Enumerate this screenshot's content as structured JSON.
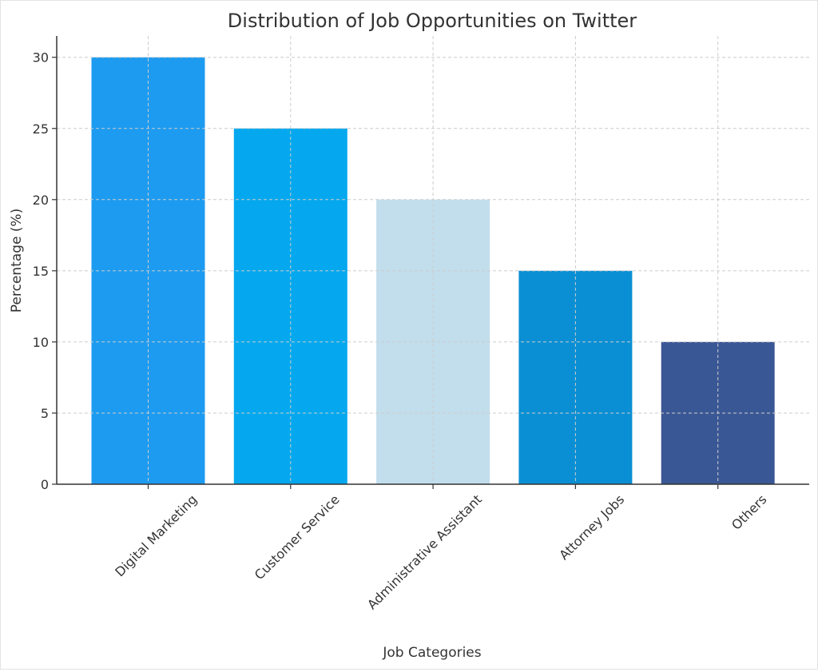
{
  "chart_data": {
    "type": "bar",
    "title": "Distribution of Job Opportunities on Twitter",
    "xlabel": "Job Categories",
    "ylabel": "Percentage (%)",
    "categories": [
      "Digital Marketing",
      "Customer Service",
      "Administrative Assistant",
      "Attorney Jobs",
      "Others"
    ],
    "values": [
      30,
      25,
      20,
      15,
      10
    ],
    "colors": [
      "#1d9bf0",
      "#05a8ee",
      "#c2deed",
      "#0a8fd4",
      "#3a5795"
    ],
    "ylim": [
      0,
      31.5
    ],
    "yticks": [
      0,
      5,
      10,
      15,
      20,
      25,
      30
    ],
    "grid": true,
    "legend": "none"
  }
}
